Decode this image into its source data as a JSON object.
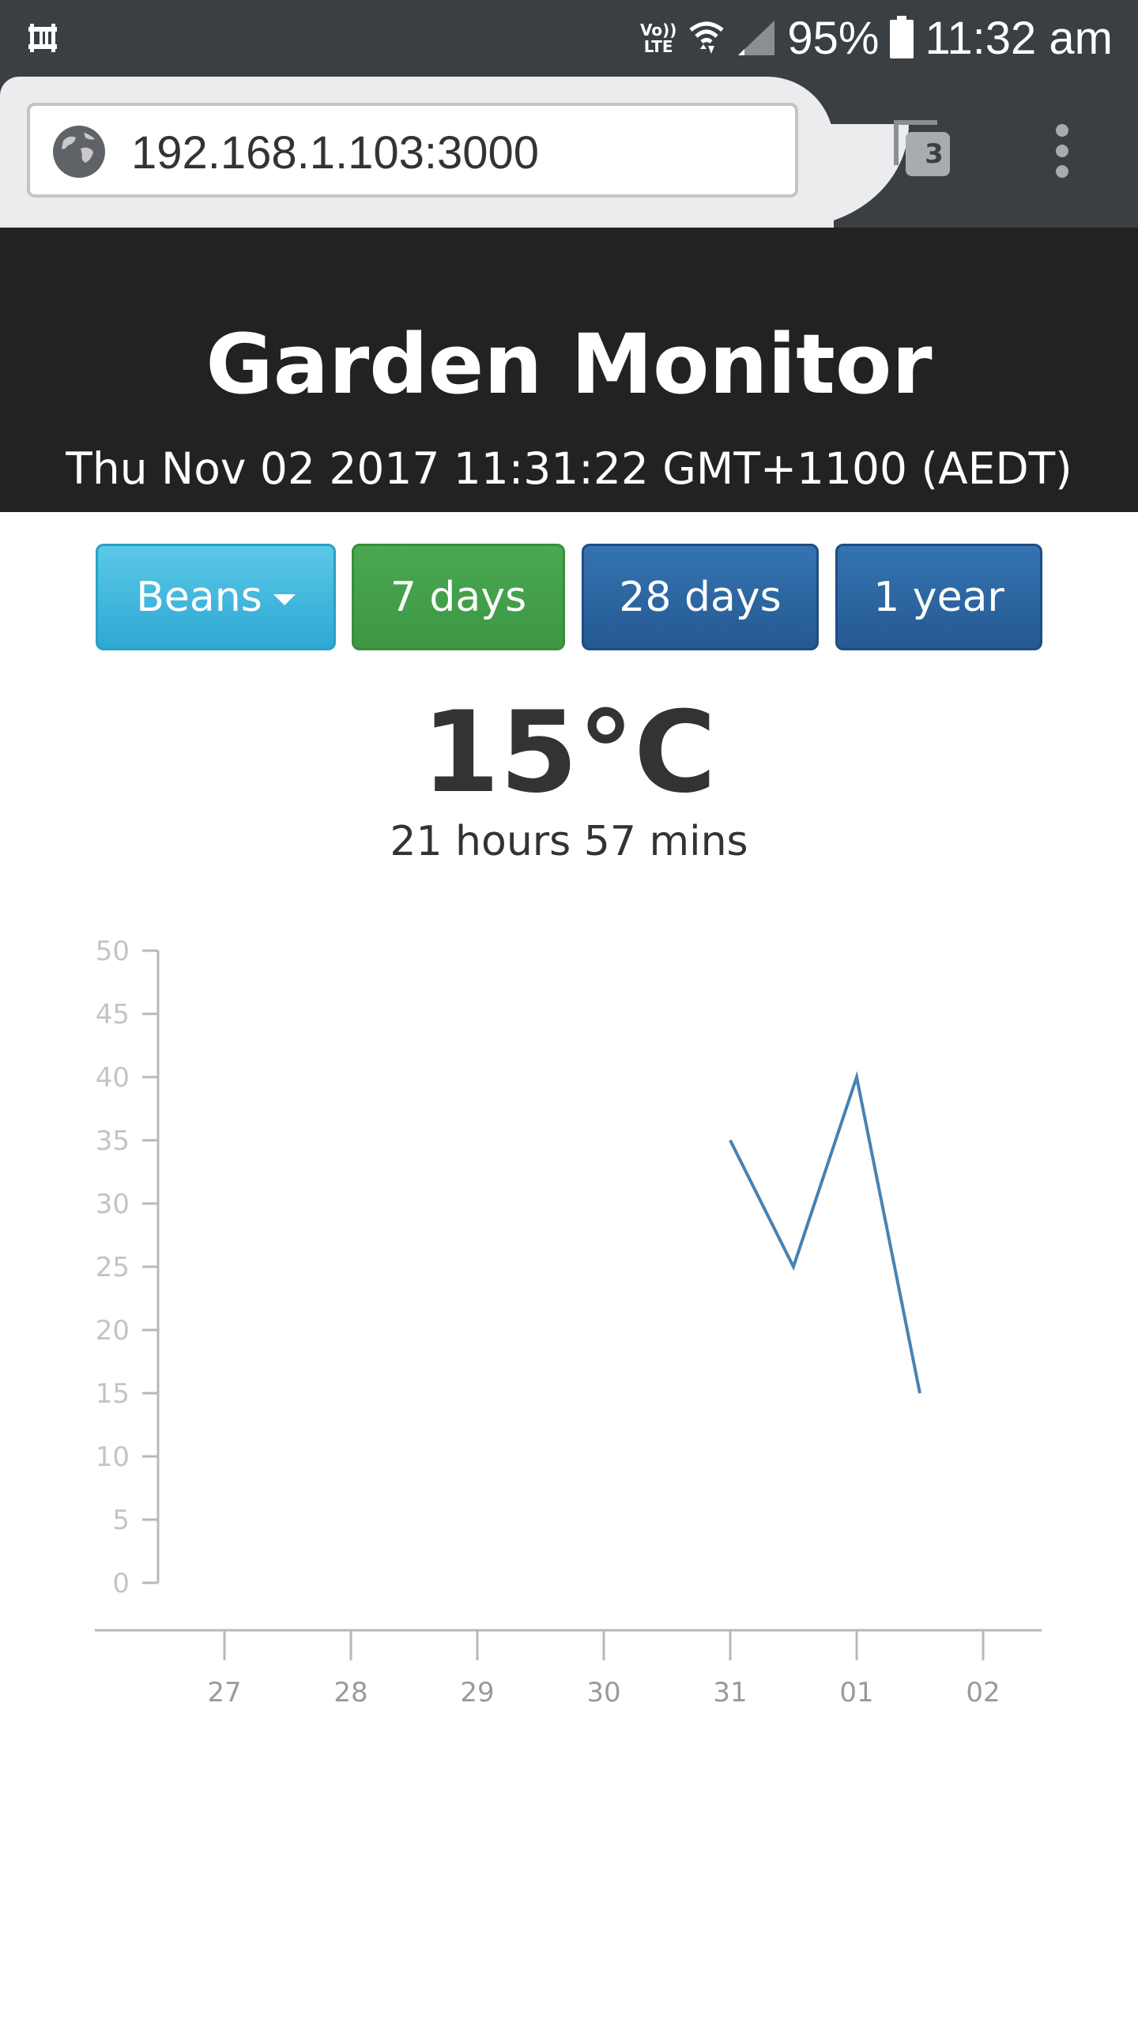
{
  "status_bar": {
    "network_badge_top": "Vo))",
    "network_badge_bottom": "LTE",
    "battery_percent": "95%",
    "time": "11:32 am",
    "icons": [
      "notification-icon",
      "volte-icon",
      "wifi-icon",
      "signal-icon",
      "battery-icon"
    ]
  },
  "browser": {
    "url": "192.168.1.103:3000",
    "tab_count": "3"
  },
  "header": {
    "title": "Garden Monitor",
    "datetime": "Thu Nov 02 2017 11:31:22 GMT+1100 (AEDT)"
  },
  "controls": {
    "plant_dropdown": "Beans",
    "range_7": "7 days",
    "range_28": "28 days",
    "range_year": "1 year"
  },
  "reading": {
    "temperature": "15°C",
    "elapsed": "21 hours 57 mins"
  },
  "colors": {
    "header_bg": "#222222",
    "info": "#31b0d5",
    "success": "#449d44",
    "primary": "#286090",
    "line": "#4682b4"
  },
  "chart_data": {
    "type": "line",
    "title": "",
    "xlabel": "",
    "ylabel": "",
    "ylim": [
      0,
      50
    ],
    "y_ticks": [
      "0",
      "5",
      "10",
      "15",
      "20",
      "25",
      "30",
      "35",
      "40",
      "45",
      "50"
    ],
    "x_ticks": [
      "27",
      "28",
      "29",
      "30",
      "31",
      "01",
      "02"
    ],
    "series": [
      {
        "x": [
          "2017-10-31 00:00",
          "2017-10-31 12:00",
          "2017-11-01 00:00",
          "2017-11-01 12:00"
        ],
        "values": [
          35,
          25,
          40,
          15
        ]
      }
    ],
    "grid": false
  }
}
